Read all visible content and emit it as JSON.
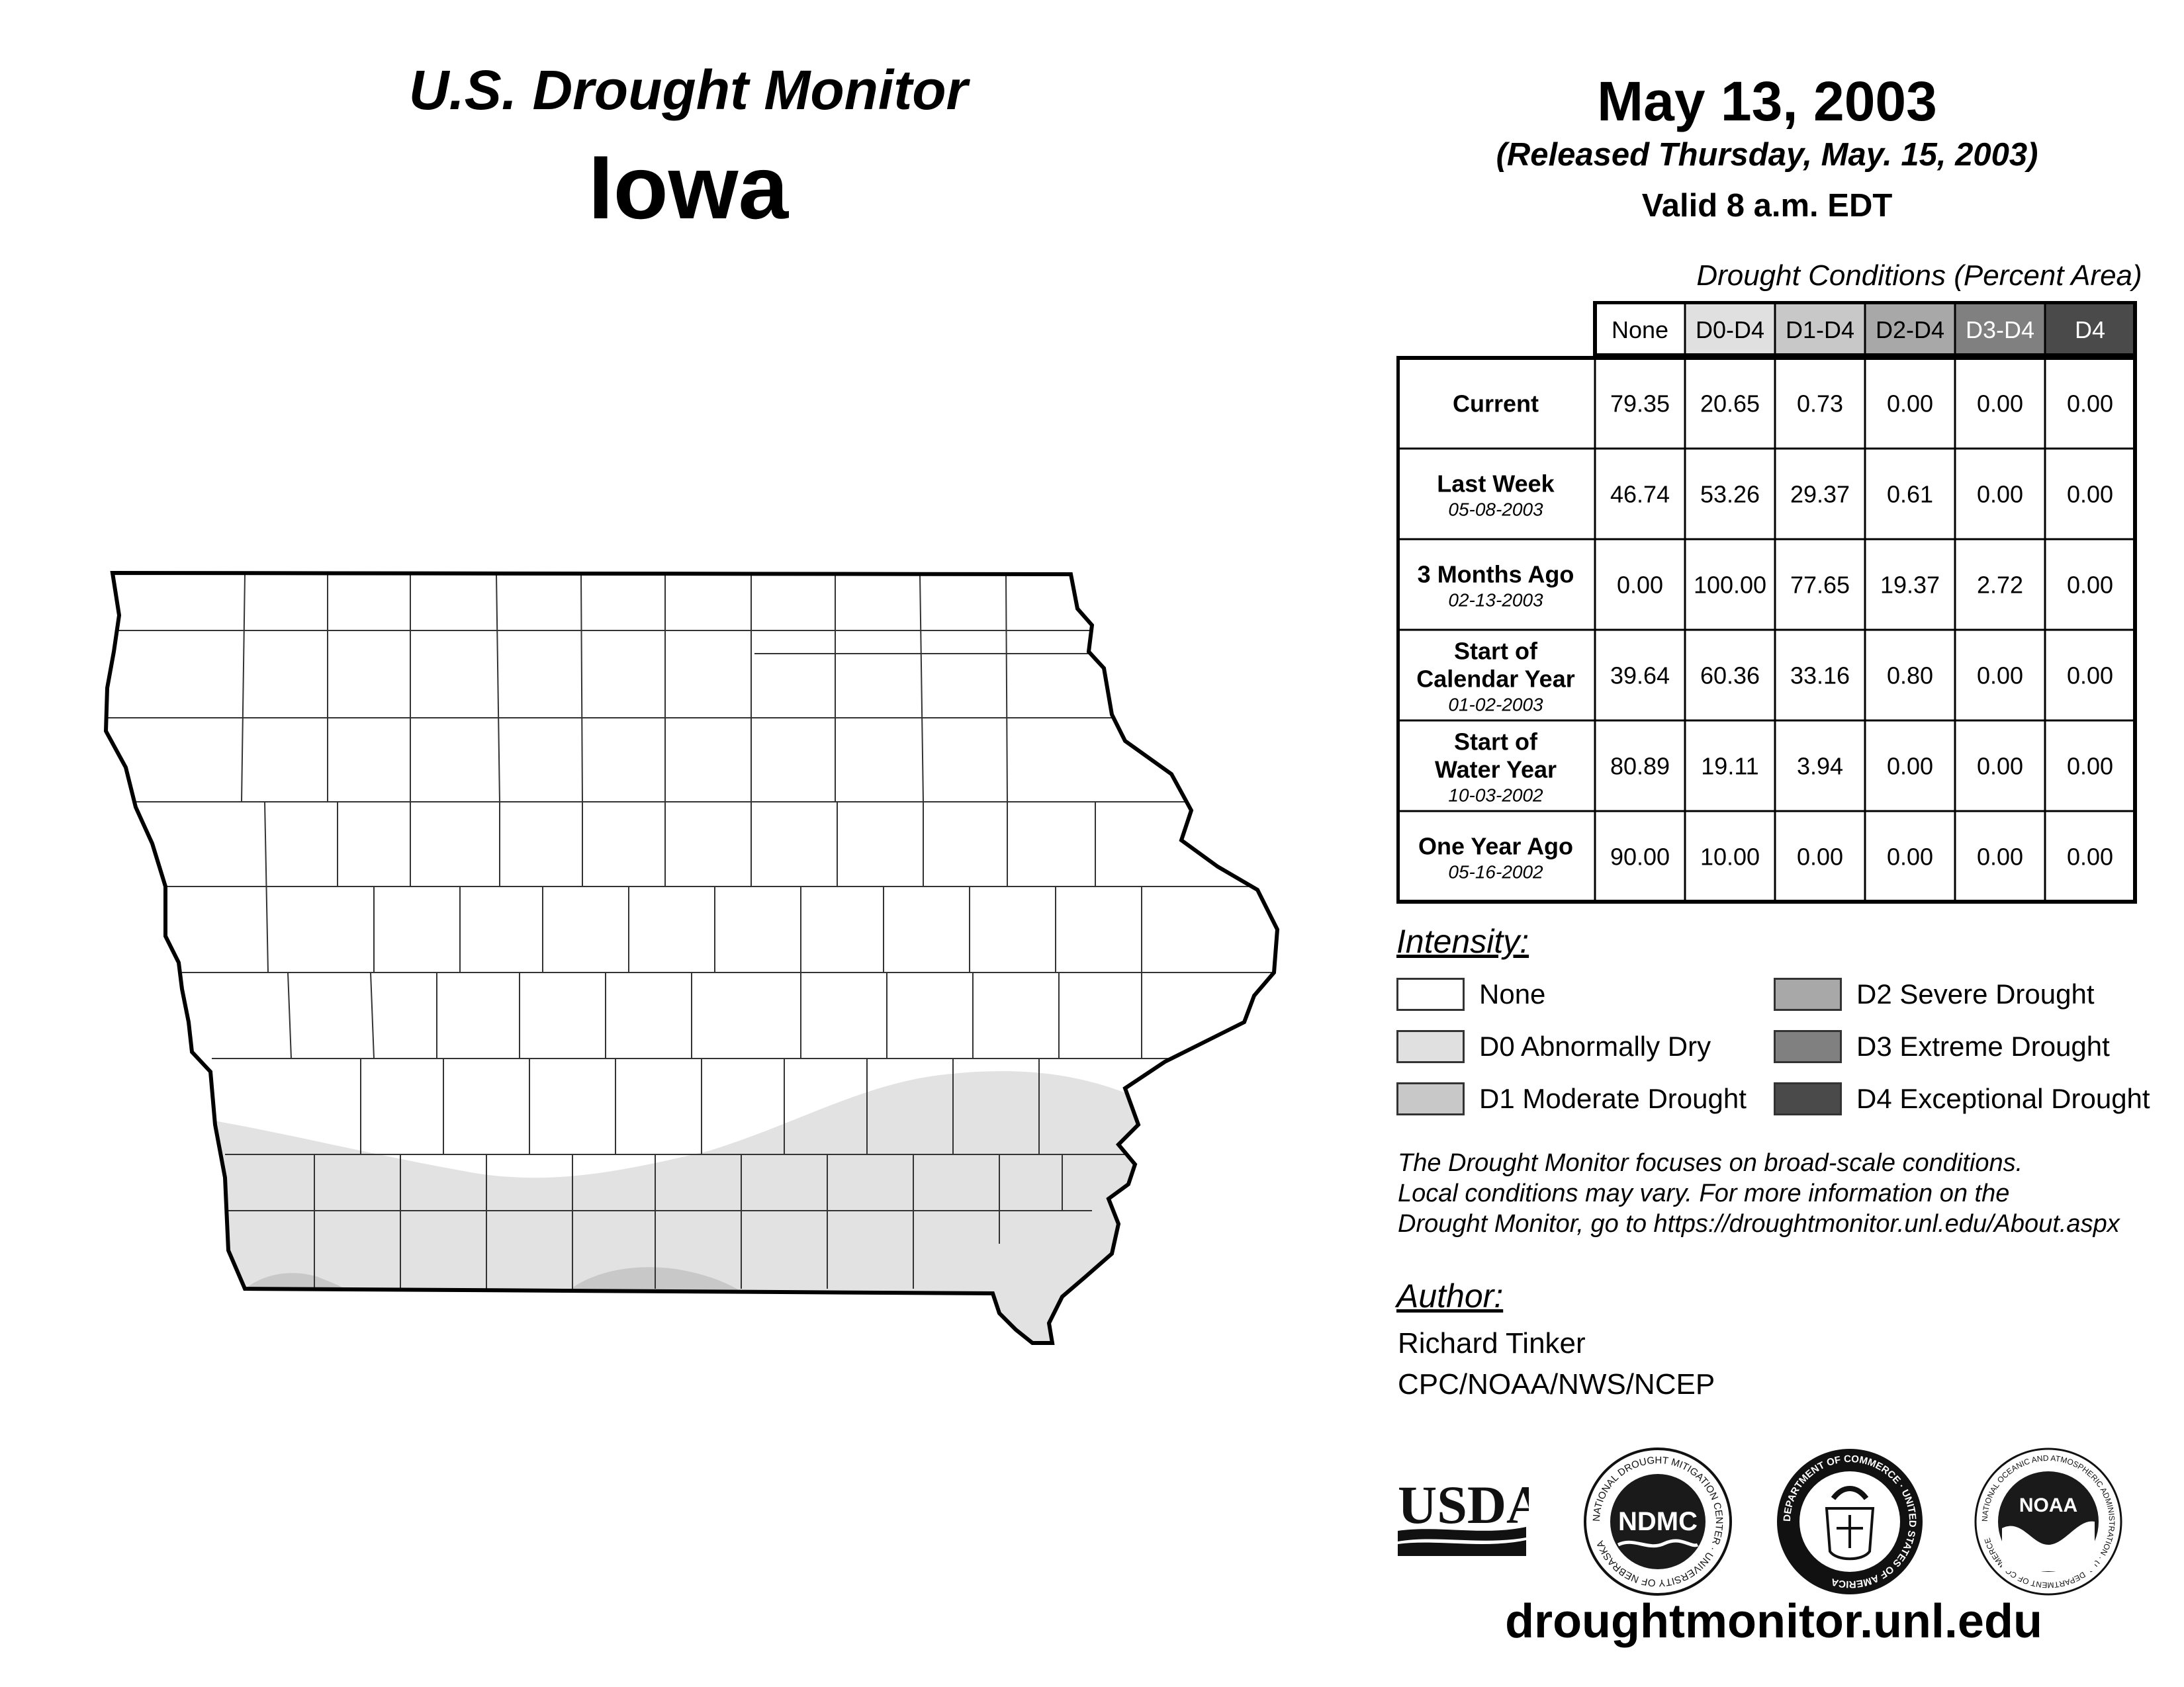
{
  "header": {
    "monitor_title": "U.S. Drought Monitor",
    "state": "Iowa",
    "date": "May 13, 2003",
    "released": "(Released Thursday, May. 15, 2003)",
    "valid": "Valid 8 a.m. EDT"
  },
  "table": {
    "title": "Drought Conditions (Percent Area)",
    "columns": [
      {
        "label": "None",
        "color": "#ffffff",
        "text_color": "#000000"
      },
      {
        "label": "D0-D4",
        "color": "#e0e0e0",
        "text_color": "#000000"
      },
      {
        "label": "D1-D4",
        "color": "#c8c8c8",
        "text_color": "#000000"
      },
      {
        "label": "D2-D4",
        "color": "#a8a8a8",
        "text_color": "#000000"
      },
      {
        "label": "D3-D4",
        "color": "#808080",
        "text_color": "#ffffff"
      },
      {
        "label": "D4",
        "color": "#4a4a4a",
        "text_color": "#ffffff"
      }
    ],
    "rows": [
      {
        "label": "Current",
        "date": "",
        "values": [
          "79.35",
          "20.65",
          "0.73",
          "0.00",
          "0.00",
          "0.00"
        ]
      },
      {
        "label": "Last Week",
        "date": "05-08-2003",
        "values": [
          "46.74",
          "53.26",
          "29.37",
          "0.61",
          "0.00",
          "0.00"
        ]
      },
      {
        "label": "3 Months Ago",
        "date": "02-13-2003",
        "values": [
          "0.00",
          "100.00",
          "77.65",
          "19.37",
          "2.72",
          "0.00"
        ]
      },
      {
        "label": "Start of Calendar Year",
        "date": "01-02-2003",
        "values": [
          "39.64",
          "60.36",
          "33.16",
          "0.80",
          "0.00",
          "0.00"
        ]
      },
      {
        "label": "Start of Water Year",
        "date": "10-03-2002",
        "values": [
          "80.89",
          "19.11",
          "3.94",
          "0.00",
          "0.00",
          "0.00"
        ]
      },
      {
        "label": "One Year Ago",
        "date": "05-16-2002",
        "values": [
          "90.00",
          "10.00",
          "0.00",
          "0.00",
          "0.00",
          "0.00"
        ]
      }
    ]
  },
  "legend": {
    "title": "Intensity:",
    "items": [
      {
        "label": "None",
        "color": "#ffffff"
      },
      {
        "label": "D0 Abnormally Dry",
        "color": "#e0e0e0"
      },
      {
        "label": "D1 Moderate Drought",
        "color": "#c8c8c8"
      },
      {
        "label": "D2 Severe Drought",
        "color": "#a8a8a8"
      },
      {
        "label": "D3 Extreme Drought",
        "color": "#808080"
      },
      {
        "label": "D4 Exceptional Drought",
        "color": "#4a4a4a"
      }
    ]
  },
  "note": [
    "The Drought Monitor focuses on broad-scale conditions.",
    "Local conditions may vary. For more information on the",
    "Drought Monitor, go to https://droughtmonitor.unl.edu/About.aspx"
  ],
  "author": {
    "label": "Author:",
    "name": "Richard Tinker",
    "org": "CPC/NOAA/NWS/NCEP"
  },
  "logos": {
    "usda": "USDA",
    "ndmc": "NDMC",
    "ndmc_ring": "NATIONAL DROUGHT MITIGATION CENTER · UNIVERSITY OF NEBRASKA",
    "doc_ring": "DEPARTMENT OF COMMERCE · UNITED STATES OF AMERICA",
    "noaa": "NOAA",
    "noaa_ring": "NATIONAL OCEANIC AND ATMOSPHERIC ADMINISTRATION · U.S. DEPARTMENT OF COMMERCE"
  },
  "map": {
    "d0_color": "#e2e2e2",
    "d1_color": "#c8c8c8"
  },
  "footer_url": "droughtmonitor.unl.edu"
}
